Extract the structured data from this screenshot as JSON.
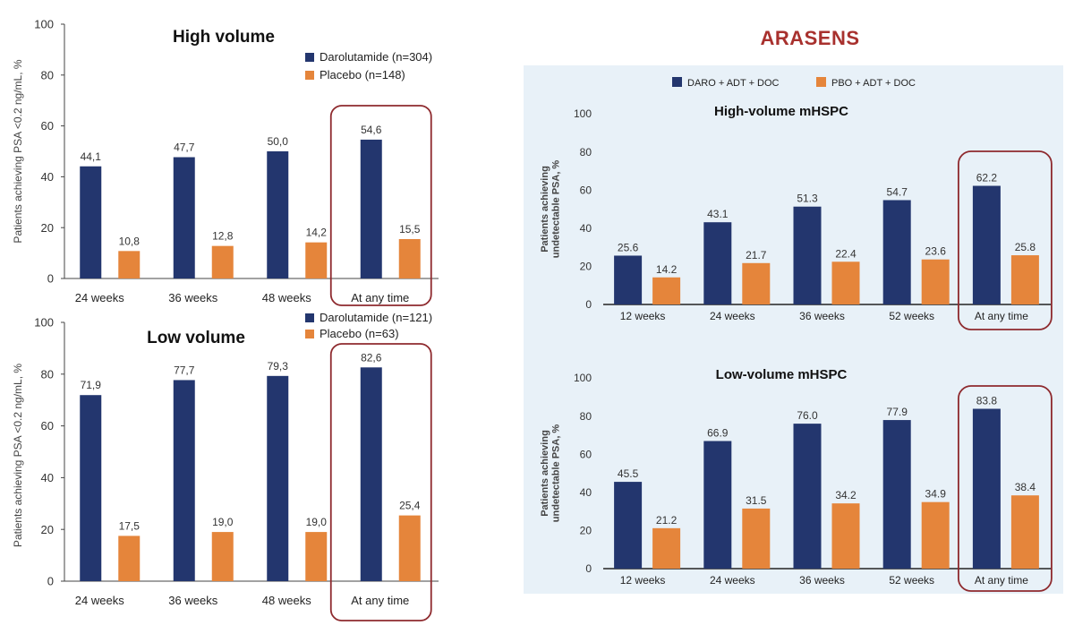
{
  "report_title": "ARASENS",
  "colors": {
    "daro": "#23366e",
    "placebo": "#e5853b",
    "highlight": "#8e2a2e",
    "panel_bg": "#e8f1f8"
  },
  "chart_data": [
    {
      "id": "left-high",
      "type": "bar",
      "title": "High volume",
      "xlabel": "",
      "ylabel": "Patients achieving PSA <0.2 ng/mL, %",
      "ylim": [
        0,
        100
      ],
      "yticks": [
        0,
        20,
        40,
        60,
        80,
        100
      ],
      "grid": false,
      "legend_position": "top-right",
      "categories": [
        "24 weeks",
        "36 weeks",
        "48 weeks",
        "At any time"
      ],
      "series": [
        {
          "name": "Darolutamide (n=304)",
          "values": [
            44.1,
            47.7,
            50.0,
            54.6
          ],
          "labels": [
            "44,1",
            "47,7",
            "50,0",
            "54,6"
          ]
        },
        {
          "name": "Placebo (n=148)",
          "values": [
            10.8,
            12.8,
            14.2,
            15.5
          ],
          "labels": [
            "10,8",
            "12,8",
            "14,2",
            "15,5"
          ]
        }
      ],
      "highlighted_category": "At any time"
    },
    {
      "id": "left-low",
      "type": "bar",
      "title": "Low volume",
      "xlabel": "",
      "ylabel": "Patients achieving PSA <0.2 ng/mL, %",
      "ylim": [
        0,
        100
      ],
      "yticks": [
        0,
        20,
        40,
        60,
        80,
        100
      ],
      "grid": false,
      "legend_position": "top-right",
      "categories": [
        "24 weeks",
        "36 weeks",
        "48 weeks",
        "At any time"
      ],
      "series": [
        {
          "name": "Darolutamide (n=121)",
          "values": [
            71.9,
            77.7,
            79.3,
            82.6
          ],
          "labels": [
            "71,9",
            "77,7",
            "79,3",
            "82,6"
          ]
        },
        {
          "name": "Placebo (n=63)",
          "values": [
            17.5,
            19.0,
            19.0,
            25.4
          ],
          "labels": [
            "17,5",
            "19,0",
            "19,0",
            "25,4"
          ]
        }
      ],
      "highlighted_category": "At any time"
    },
    {
      "id": "right-high",
      "type": "bar",
      "title": "High-volume mHSPC",
      "xlabel": "",
      "ylabel": "Patients achieving undetectable PSA, %",
      "ylim": [
        0,
        100
      ],
      "yticks": [
        0,
        20,
        40,
        60,
        80,
        100
      ],
      "grid": false,
      "legend_position": "top",
      "categories": [
        "12 weeks",
        "24 weeks",
        "36 weeks",
        "52 weeks",
        "At any time"
      ],
      "series": [
        {
          "name": "DARO + ADT + DOC",
          "values": [
            25.6,
            43.1,
            51.3,
            54.7,
            62.2
          ],
          "labels": [
            "25.6",
            "43.1",
            "51.3",
            "54.7",
            "62.2"
          ]
        },
        {
          "name": "PBO + ADT + DOC",
          "values": [
            14.2,
            21.7,
            22.4,
            23.6,
            25.8
          ],
          "labels": [
            "14.2",
            "21.7",
            "22.4",
            "23.6",
            "25.8"
          ]
        }
      ],
      "highlighted_category": "At any time"
    },
    {
      "id": "right-low",
      "type": "bar",
      "title": "Low-volume mHSPC",
      "xlabel": "",
      "ylabel": "Patients achieving undetectable PSA, %",
      "ylim": [
        0,
        100
      ],
      "yticks": [
        0,
        20,
        40,
        60,
        80,
        100
      ],
      "grid": false,
      "categories": [
        "12 weeks",
        "24 weeks",
        "36 weeks",
        "52 weeks",
        "At any time"
      ],
      "series": [
        {
          "name": "DARO + ADT + DOC",
          "values": [
            45.5,
            66.9,
            76.0,
            77.9,
            83.8
          ],
          "labels": [
            "45.5",
            "66.9",
            "76.0",
            "77.9",
            "83.8"
          ]
        },
        {
          "name": "PBO + ADT + DOC",
          "values": [
            21.2,
            31.5,
            34.2,
            34.9,
            38.4
          ],
          "labels": [
            "21.2",
            "31.5",
            "34.2",
            "34.9",
            "38.4"
          ]
        }
      ],
      "highlighted_category": "At any time"
    }
  ]
}
